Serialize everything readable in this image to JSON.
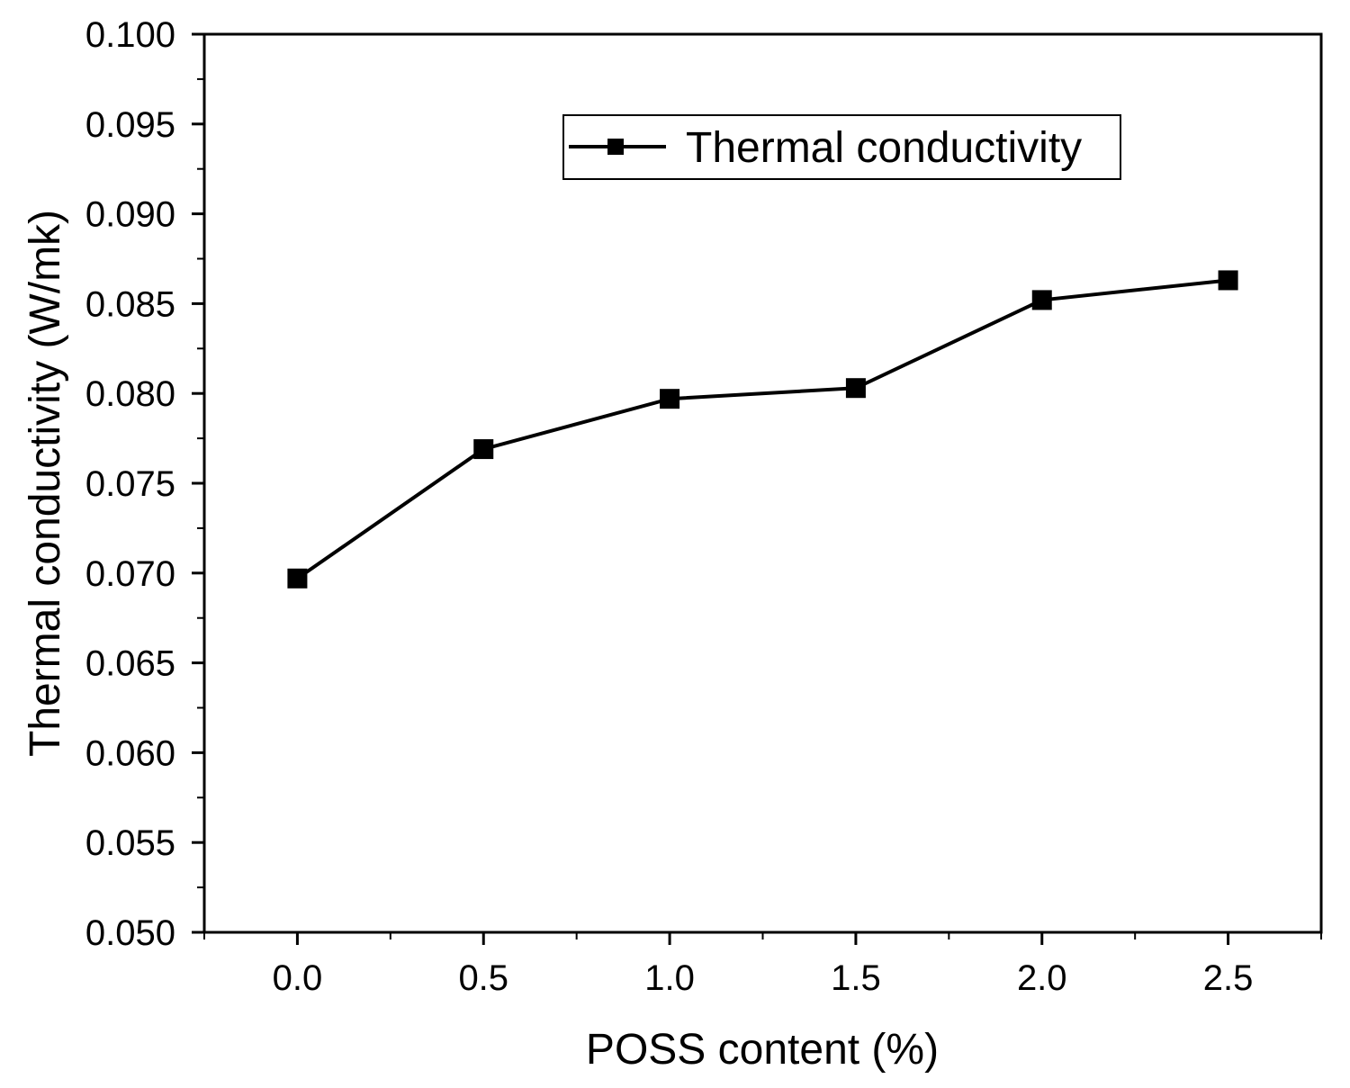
{
  "chart_data": {
    "type": "line",
    "title": "",
    "xlabel": "POSS content (%)",
    "ylabel": "Thermal conductivity (W/mk)",
    "xlim": [
      -0.25,
      2.75
    ],
    "ylim": [
      0.05,
      0.1
    ],
    "x_ticks": [
      "0.0",
      "0.5",
      "1.0",
      "1.5",
      "2.0",
      "2.5"
    ],
    "y_ticks": [
      "0.050",
      "0.055",
      "0.060",
      "0.065",
      "0.070",
      "0.075",
      "0.080",
      "0.085",
      "0.090",
      "0.095",
      "0.100"
    ],
    "grid": false,
    "legend_position": "top-right",
    "series": [
      {
        "name": "Thermal conductivity",
        "marker": "square",
        "color": "#000000",
        "x": [
          0.0,
          0.5,
          1.0,
          1.5,
          2.0,
          2.5
        ],
        "y": [
          0.0697,
          0.0769,
          0.0797,
          0.0803,
          0.0852,
          0.0863
        ]
      }
    ]
  }
}
